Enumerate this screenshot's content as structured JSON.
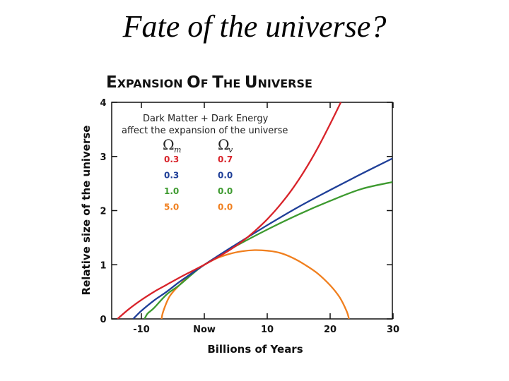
{
  "slide": {
    "title": "Fate of the universe?"
  },
  "chart_data": {
    "type": "line",
    "title": "Expansion of the Universe",
    "xlabel": "Billions of Years",
    "ylabel": "Relative size of the universe",
    "xlim": [
      -15,
      30
    ],
    "ylim": [
      0,
      4
    ],
    "x_ticks": [
      {
        "value": -10,
        "label": "-10"
      },
      {
        "value": 0,
        "label": "Now"
      },
      {
        "value": 10,
        "label": "10"
      },
      {
        "value": 20,
        "label": "20"
      },
      {
        "value": 30,
        "label": "30"
      }
    ],
    "y_ticks": [
      {
        "value": 0,
        "label": "0"
      },
      {
        "value": 1,
        "label": "1"
      },
      {
        "value": 2,
        "label": "2"
      },
      {
        "value": 3,
        "label": "3"
      },
      {
        "value": 4,
        "label": "4"
      }
    ],
    "legend": {
      "heading_line1": "Dark Matter + Dark Energy",
      "heading_line2": "affect the expansion of the universe",
      "col_m_symbol": "Ω",
      "col_m_sub": "m",
      "col_v_symbol": "Ω",
      "col_v_sub": "v",
      "placement": "top-left"
    },
    "series": [
      {
        "omega_m": "0.3",
        "omega_v": "0.7",
        "color": "#d8232a",
        "points": [
          [
            -13.8,
            0
          ],
          [
            -12,
            0.18
          ],
          [
            -10,
            0.35
          ],
          [
            -8,
            0.5
          ],
          [
            -6,
            0.63
          ],
          [
            -4,
            0.76
          ],
          [
            -2,
            0.88
          ],
          [
            0,
            1
          ],
          [
            2,
            1.13
          ],
          [
            4,
            1.27
          ],
          [
            6,
            1.43
          ],
          [
            8,
            1.62
          ],
          [
            10,
            1.84
          ],
          [
            12,
            2.1
          ],
          [
            14,
            2.4
          ],
          [
            16,
            2.75
          ],
          [
            18,
            3.15
          ],
          [
            20,
            3.6
          ],
          [
            21.7,
            4
          ]
        ]
      },
      {
        "omega_m": "0.3",
        "omega_v": "0.0",
        "color": "#1f3f98",
        "points": [
          [
            -11.3,
            0
          ],
          [
            -10,
            0.15
          ],
          [
            -8,
            0.34
          ],
          [
            -6,
            0.5
          ],
          [
            -4,
            0.68
          ],
          [
            -2,
            0.84
          ],
          [
            0,
            1
          ],
          [
            4,
            1.3
          ],
          [
            10,
            1.73
          ],
          [
            15,
            2.07
          ],
          [
            20,
            2.38
          ],
          [
            25,
            2.68
          ],
          [
            30,
            2.97
          ]
        ]
      },
      {
        "omega_m": "1.0",
        "omega_v": "0.0",
        "color": "#3d9a2f",
        "points": [
          [
            -9.5,
            0
          ],
          [
            -9,
            0.1
          ],
          [
            -8,
            0.2
          ],
          [
            -6,
            0.45
          ],
          [
            -4,
            0.62
          ],
          [
            -2,
            0.82
          ],
          [
            0,
            1
          ],
          [
            4,
            1.28
          ],
          [
            10,
            1.65
          ],
          [
            15,
            1.93
          ],
          [
            20,
            2.18
          ],
          [
            25,
            2.4
          ],
          [
            30,
            2.53
          ]
        ]
      },
      {
        "omega_m": "5.0",
        "omega_v": "0.0",
        "color": "#f07f1e",
        "points": [
          [
            -6.8,
            0
          ],
          [
            -6.5,
            0.15
          ],
          [
            -5.5,
            0.42
          ],
          [
            -4,
            0.62
          ],
          [
            -2,
            0.85
          ],
          [
            0,
            1
          ],
          [
            2,
            1.12
          ],
          [
            4,
            1.2
          ],
          [
            6,
            1.25
          ],
          [
            8,
            1.27
          ],
          [
            10,
            1.26
          ],
          [
            12,
            1.22
          ],
          [
            14,
            1.13
          ],
          [
            16,
            1.0
          ],
          [
            18,
            0.84
          ],
          [
            20,
            0.62
          ],
          [
            21.5,
            0.4
          ],
          [
            22.6,
            0.15
          ],
          [
            23,
            0
          ]
        ]
      }
    ]
  }
}
